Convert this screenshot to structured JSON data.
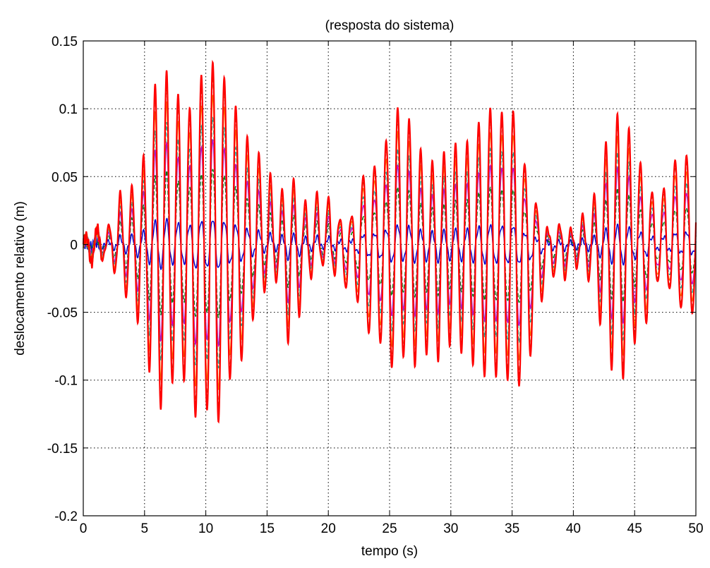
{
  "chart_data": {
    "type": "line",
    "title": "(resposta do sistema)",
    "xlabel": "tempo (s)",
    "ylabel": "deslocamento relativo (m)",
    "xlim": [
      0,
      50
    ],
    "ylim": [
      -0.2,
      0.15
    ],
    "xticks": [
      "0",
      "5",
      "10",
      "15",
      "20",
      "25",
      "30",
      "35",
      "40",
      "45",
      "50"
    ],
    "yticks": [
      "0.15",
      "0.1",
      "0.05",
      "0",
      "-0.05",
      "-0.1",
      "-0.15",
      "-0.2"
    ],
    "grid": true,
    "legend": "none",
    "series_colors": [
      "#0000cc",
      "#008000",
      "#cc00cc",
      "#00aaaa",
      "#ff8000",
      "#aa5500",
      "#ff0000"
    ],
    "envelope": {
      "t": [
        0,
        1,
        2,
        3,
        4,
        5,
        6,
        7,
        8,
        9,
        10,
        11,
        12,
        13,
        14,
        15,
        16,
        17,
        18,
        19,
        20,
        21,
        22,
        23,
        24,
        25,
        26,
        27,
        28,
        29,
        30,
        31,
        32,
        33,
        34,
        35,
        36,
        37,
        38,
        39,
        40,
        41,
        42,
        43,
        44,
        45,
        46,
        47,
        48,
        49,
        50
      ],
      "max": [
        0.004,
        0.012,
        0.012,
        0.038,
        0.042,
        0.066,
        0.125,
        0.128,
        0.105,
        0.1,
        0.142,
        0.132,
        0.118,
        0.085,
        0.072,
        0.057,
        0.036,
        0.05,
        0.03,
        0.038,
        0.035,
        0.018,
        0.022,
        0.058,
        0.06,
        0.085,
        0.11,
        0.08,
        0.06,
        0.06,
        0.075,
        0.07,
        0.085,
        0.102,
        0.098,
        0.104,
        0.062,
        0.03,
        0.01,
        0.015,
        0.01,
        0.025,
        0.04,
        0.092,
        0.097,
        0.075,
        0.045,
        0.032,
        0.061,
        0.071,
        0.055
      ],
      "min": [
        -0.012,
        -0.015,
        -0.008,
        -0.03,
        -0.045,
        -0.07,
        -0.128,
        -0.105,
        -0.093,
        -0.13,
        -0.123,
        -0.134,
        -0.1,
        -0.085,
        -0.05,
        -0.03,
        -0.025,
        -0.09,
        -0.03,
        -0.02,
        -0.01,
        -0.035,
        -0.03,
        -0.067,
        -0.068,
        -0.094,
        -0.082,
        -0.09,
        -0.08,
        -0.085,
        -0.072,
        -0.08,
        -0.09,
        -0.1,
        -0.098,
        -0.104,
        -0.108,
        -0.06,
        -0.02,
        -0.03,
        -0.016,
        -0.018,
        -0.05,
        -0.09,
        -0.1,
        -0.073,
        -0.058,
        -0.025,
        -0.036,
        -0.052,
        -0.052
      ]
    }
  }
}
